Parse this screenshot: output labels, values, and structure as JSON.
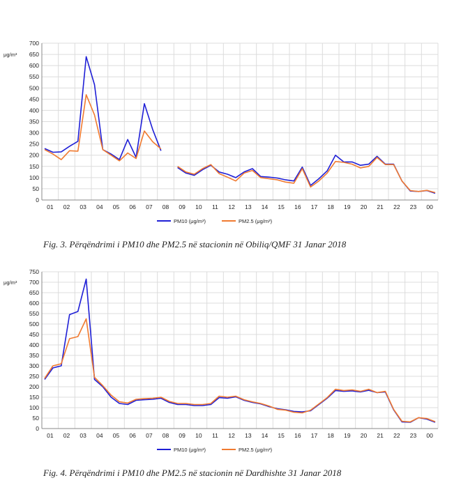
{
  "captions": [
    "Fig. 3. Përqëndrimi i PM10 dhe PM2.5 në stacionin në Obiliq/QMF 31 Janar 2018",
    "Fig. 4. Përqëndrimi i PM10 dhe PM2.5 në stacionin në Dardhishte 31 Janar 2018"
  ],
  "colors": {
    "pm10": "#1f1fd6",
    "pm25": "#f07a30",
    "grid": "#dcdcdc"
  },
  "chart_data": [
    {
      "type": "line",
      "ylabel": "μg/m³",
      "ylim": [
        0,
        700
      ],
      "yticks": [
        0,
        50,
        100,
        150,
        200,
        250,
        300,
        350,
        400,
        450,
        500,
        550,
        600,
        650,
        700
      ],
      "xticklabels": [
        "01",
        "02",
        "03",
        "04",
        "05",
        "06",
        "07",
        "08",
        "09",
        "10",
        "11",
        "12",
        "13",
        "14",
        "15",
        "16",
        "17",
        "18",
        "19",
        "20",
        "21",
        "22",
        "23",
        "00"
      ],
      "legend_position": "bottom",
      "series": [
        {
          "name": "PM10 (μg/m³)",
          "color_key": "pm10",
          "values": [
            230,
            213,
            215,
            240,
            262,
            640,
            515,
            225,
            205,
            180,
            270,
            190,
            430,
            315,
            220,
            null,
            145,
            120,
            110,
            135,
            155,
            125,
            115,
            100,
            125,
            140,
            105,
            102,
            98,
            90,
            85,
            147,
            65,
            95,
            130,
            200,
            170,
            170,
            155,
            160,
            195,
            160,
            160,
            85,
            40,
            38,
            42,
            30
          ]
        },
        {
          "name": "PM2.5 (μg/m³)",
          "color_key": "pm25",
          "values": [
            225,
            205,
            180,
            220,
            218,
            470,
            380,
            225,
            200,
            175,
            210,
            185,
            308,
            260,
            228,
            null,
            150,
            125,
            115,
            140,
            158,
            118,
            102,
            85,
            120,
            132,
            100,
            95,
            90,
            80,
            75,
            140,
            58,
            85,
            120,
            172,
            168,
            160,
            143,
            150,
            190,
            158,
            158,
            85,
            42,
            38,
            43,
            33
          ]
        }
      ]
    },
    {
      "type": "line",
      "ylabel": "μg/m³",
      "ylim": [
        0,
        750
      ],
      "yticks": [
        0,
        50,
        100,
        150,
        200,
        250,
        300,
        350,
        400,
        450,
        500,
        550,
        600,
        650,
        700,
        750
      ],
      "xticklabels": [
        "01",
        "02",
        "03",
        "04",
        "05",
        "06",
        "07",
        "08",
        "09",
        "10",
        "11",
        "12",
        "13",
        "14",
        "15",
        "16",
        "17",
        "18",
        "19",
        "20",
        "21",
        "22",
        "23",
        "00"
      ],
      "legend_position": "bottom",
      "series": [
        {
          "name": "PM10 (μg/m³)",
          "color_key": "pm10",
          "values": [
            235,
            290,
            300,
            545,
            560,
            715,
            235,
            200,
            150,
            120,
            115,
            135,
            138,
            140,
            145,
            125,
            115,
            115,
            110,
            110,
            115,
            148,
            145,
            152,
            135,
            125,
            118,
            105,
            95,
            90,
            82,
            80,
            85,
            115,
            145,
            182,
            178,
            180,
            175,
            183,
            172,
            175,
            90,
            32,
            30,
            52,
            45,
            30
          ]
        },
        {
          "name": "PM2.5 (μg/m³)",
          "color_key": "pm25",
          "values": [
            240,
            300,
            310,
            430,
            440,
            525,
            245,
            205,
            160,
            128,
            122,
            140,
            143,
            145,
            150,
            130,
            120,
            120,
            115,
            115,
            120,
            155,
            150,
            155,
            138,
            128,
            120,
            108,
            92,
            88,
            78,
            75,
            88,
            118,
            148,
            188,
            182,
            185,
            178,
            188,
            172,
            178,
            92,
            35,
            32,
            52,
            48,
            33
          ]
        }
      ]
    }
  ]
}
